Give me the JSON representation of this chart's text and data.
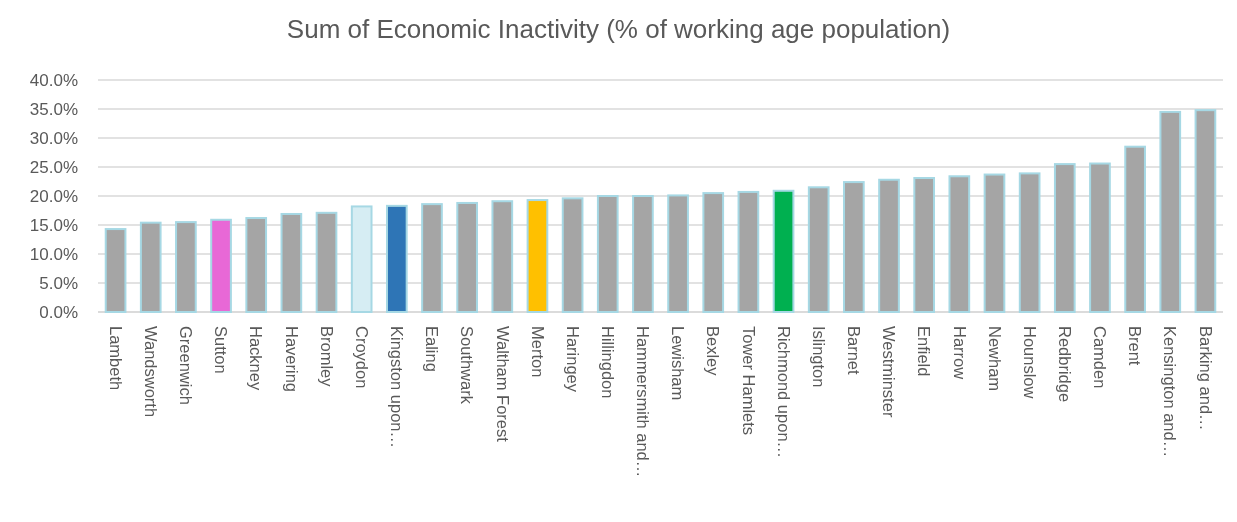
{
  "chart_data": {
    "type": "bar",
    "title": "Sum of Economic Inactivity (% of working age population)",
    "categories": [
      "Lambeth",
      "Wandsworth",
      "Greenwich",
      "Sutton",
      "Hackney",
      "Havering",
      "Bromley",
      "Croydon",
      "Kingston upon…",
      "Ealing",
      "Southwark",
      "Waltham Forest",
      "Merton",
      "Haringey",
      "Hillingdon",
      "Hammersmith and…",
      "Lewisham",
      "Bexley",
      "Tower Hamlets",
      "Richmond upon…",
      "Islington",
      "Barnet",
      "Westminster",
      "Enfield",
      "Harrow",
      "Newham",
      "Hounslow",
      "Redbridge",
      "Camden",
      "Brent",
      "Kensington and…",
      "Barking and…"
    ],
    "values": [
      14.3,
      15.4,
      15.5,
      15.9,
      16.2,
      16.9,
      17.1,
      18.2,
      18.3,
      18.6,
      18.8,
      19.1,
      19.3,
      19.6,
      20.0,
      20.0,
      20.1,
      20.5,
      20.7,
      20.9,
      21.5,
      22.4,
      22.8,
      23.1,
      23.4,
      23.7,
      23.9,
      25.5,
      25.6,
      28.5,
      34.5,
      34.8
    ],
    "colors": [
      "#a5a5a5",
      "#a5a5a5",
      "#a5a5a5",
      "#e868d6",
      "#a5a5a5",
      "#a5a5a5",
      "#a5a5a5",
      "#d6edf3",
      "#2e75b6",
      "#a5a5a5",
      "#a5a5a5",
      "#a5a5a5",
      "#ffc000",
      "#a5a5a5",
      "#a5a5a5",
      "#a5a5a5",
      "#a5a5a5",
      "#a5a5a5",
      "#a5a5a5",
      "#00b050",
      "#a5a5a5",
      "#a5a5a5",
      "#a5a5a5",
      "#a5a5a5",
      "#a5a5a5",
      "#a5a5a5",
      "#a5a5a5",
      "#a5a5a5",
      "#a5a5a5",
      "#a5a5a5",
      "#a5a5a5",
      "#a5a5a5"
    ],
    "ylim": [
      0,
      40
    ],
    "yticks": [
      {
        "value": 0,
        "label": "0.0%"
      },
      {
        "value": 5,
        "label": "5.0%"
      },
      {
        "value": 10,
        "label": "10.0%"
      },
      {
        "value": 15,
        "label": "15.0%"
      },
      {
        "value": 20,
        "label": "20.0%"
      },
      {
        "value": 25,
        "label": "25.0%"
      },
      {
        "value": 30,
        "label": "30.0%"
      },
      {
        "value": 35,
        "label": "35.0%"
      },
      {
        "value": 40,
        "label": "40.0%"
      }
    ],
    "grid": "y"
  }
}
